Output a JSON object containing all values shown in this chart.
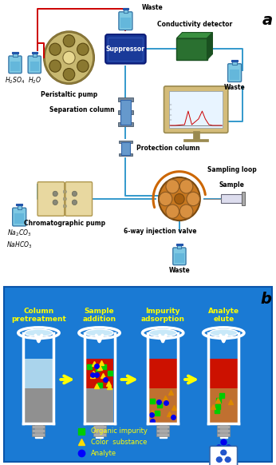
{
  "title_a": "a",
  "title_b": "b",
  "col_labels": [
    "Column\npretreatment",
    "Sample\naddition",
    "Impurity\nadsorption",
    "Analyte\nelute"
  ],
  "legend_labels": [
    "Organic impurity",
    "Color  substance",
    "Analyte"
  ],
  "legend_colors": [
    "#00cc00",
    "#ffdd00",
    "#0000ff"
  ],
  "legend_markers": [
    "s",
    "^",
    "o"
  ],
  "bottom_bg": "#1a7ad4",
  "suppressor_color": "#1a4faa",
  "peristaltic_color": "#c8b878",
  "peristaltic_edge": "#6b5a2a",
  "conductor_color": "#2d7a3a",
  "bottle_color": "#7ec8e3",
  "bottle_edge": "#3a7aaa",
  "red_line": "#cc0000",
  "blue_line": "#3399cc",
  "pump2_color": "#e8d8a0",
  "valve_color": "#c87830",
  "col_label_color": "#ffff00"
}
